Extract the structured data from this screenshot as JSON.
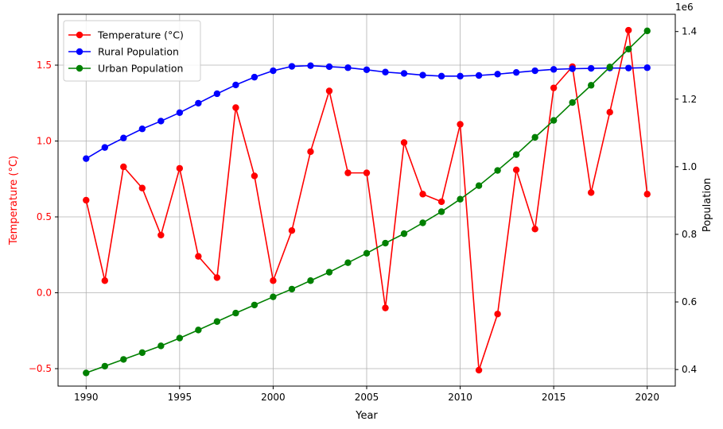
{
  "chart_data": {
    "type": "line",
    "x": [
      1990,
      1991,
      1992,
      1993,
      1994,
      1995,
      1996,
      1997,
      1998,
      1999,
      2000,
      2001,
      2002,
      2003,
      2004,
      2005,
      2006,
      2007,
      2008,
      2009,
      2010,
      2011,
      2012,
      2013,
      2014,
      2015,
      2016,
      2017,
      2018,
      2019,
      2020
    ],
    "xlabel": "Year",
    "xlim": [
      1988.5,
      2021.5
    ],
    "xticks": [
      "1990",
      "1995",
      "2000",
      "2005",
      "2010",
      "2015",
      "2020"
    ],
    "grid": true,
    "legend_position": "top-left",
    "left_axis": {
      "label": "Temperature (°C)",
      "color": "#ff0000",
      "ylim": [
        -0.615,
        1.835
      ],
      "ticks": [
        "−0.5",
        "0.0",
        "0.5",
        "1.0",
        "1.5"
      ]
    },
    "right_axis": {
      "label": "Population",
      "offset_text": "1e6",
      "color": "#000000",
      "ylim": [
        351000,
        1451000
      ],
      "ticks": [
        "0.4",
        "0.6",
        "0.8",
        "1.0",
        "1.2",
        "1.4"
      ]
    },
    "series": [
      {
        "name": "Temperature (°C)",
        "axis": "left",
        "color": "#ff0000",
        "values": [
          0.61,
          0.08,
          0.83,
          0.69,
          0.38,
          0.82,
          0.24,
          0.1,
          1.22,
          0.77,
          0.08,
          0.41,
          0.93,
          1.33,
          0.79,
          0.79,
          -0.1,
          0.99,
          0.65,
          0.6,
          1.11,
          -0.51,
          -0.14,
          0.81,
          0.42,
          1.35,
          1.49,
          0.66,
          1.19,
          1.73,
          0.65
        ]
      },
      {
        "name": "Rural Population",
        "axis": "right",
        "color": "#0000ff",
        "values": [
          1024000,
          1057000,
          1085000,
          1112000,
          1135000,
          1160000,
          1188000,
          1216000,
          1242000,
          1265000,
          1284000,
          1297000,
          1299000,
          1296000,
          1293000,
          1287000,
          1280000,
          1276000,
          1271000,
          1268000,
          1268000,
          1270000,
          1274000,
          1279000,
          1284000,
          1288000,
          1290000,
          1291000,
          1292000,
          1292000,
          1293000
        ]
      },
      {
        "name": "Urban Population",
        "axis": "right",
        "color": "#008000",
        "values": [
          390000,
          410000,
          430000,
          450000,
          470000,
          493000,
          517000,
          542000,
          567000,
          591000,
          615000,
          638000,
          663000,
          688000,
          716000,
          744000,
          774000,
          802000,
          834000,
          867000,
          904000,
          944000,
          989000,
          1036000,
          1087000,
          1137000,
          1190000,
          1241000,
          1295000,
          1348000,
          1402000
        ]
      }
    ]
  }
}
